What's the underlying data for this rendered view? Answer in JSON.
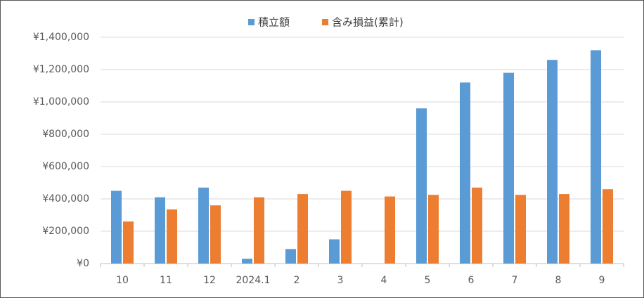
{
  "chart_data": {
    "type": "bar",
    "categories": [
      "10",
      "11",
      "12",
      "2024.1",
      "2",
      "3",
      "4",
      "5",
      "6",
      "7",
      "8",
      "9"
    ],
    "series": [
      {
        "name": "積立額",
        "color": "#5b9bd5",
        "values": [
          450000,
          410000,
          470000,
          30000,
          90000,
          150000,
          0,
          960000,
          1120000,
          1180000,
          1260000,
          1320000
        ]
      },
      {
        "name": "含み損益(累計)",
        "color": "#ed7d31",
        "values": [
          260000,
          335000,
          360000,
          410000,
          430000,
          450000,
          415000,
          425000,
          470000,
          425000,
          430000,
          460000
        ]
      }
    ],
    "ylim": [
      0,
      1400000
    ],
    "yticks": [
      {
        "value": 0,
        "label": "¥0"
      },
      {
        "value": 200000,
        "label": "¥200,000"
      },
      {
        "value": 400000,
        "label": "¥400,000"
      },
      {
        "value": 600000,
        "label": "¥600,000"
      },
      {
        "value": 800000,
        "label": "¥800,000"
      },
      {
        "value": 1000000,
        "label": "¥1,000,000"
      },
      {
        "value": 1200000,
        "label": "¥1,200,000"
      },
      {
        "value": 1400000,
        "label": "¥1,400,000"
      }
    ],
    "grid": true,
    "legend": "top"
  }
}
